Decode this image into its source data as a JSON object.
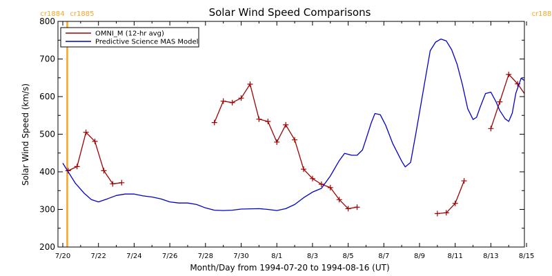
{
  "chart_data": {
    "type": "line",
    "title": "Solar Wind Speed Comparisons",
    "xlabel": "Month/Day from 1994-07-20 to 1994-08-16 (UT)",
    "ylabel": "Solar Wind Speed (km/s)",
    "x_unit_note": "x values are days after 1994-07-20 00:00 UT",
    "xlim": [
      0,
      28
    ],
    "ylim": [
      200,
      800
    ],
    "x_ticks": [
      {
        "value": 0,
        "label": "7/20"
      },
      {
        "value": 2,
        "label": "7/22"
      },
      {
        "value": 4,
        "label": "7/24"
      },
      {
        "value": 6,
        "label": "7/26"
      },
      {
        "value": 8,
        "label": "7/28"
      },
      {
        "value": 10,
        "label": "7/30"
      },
      {
        "value": 12,
        "label": "8/1"
      },
      {
        "value": 14,
        "label": "8/3"
      },
      {
        "value": 16,
        "label": "8/5"
      },
      {
        "value": 18,
        "label": "8/7"
      },
      {
        "value": 20,
        "label": "8/9"
      },
      {
        "value": 22,
        "label": "8/11"
      },
      {
        "value": 24,
        "label": "8/13"
      },
      {
        "value": 26,
        "label": "8/15"
      }
    ],
    "y_ticks": [
      200,
      300,
      400,
      500,
      600,
      700,
      800
    ],
    "legend_position": "top-left",
    "carrington_markers": [
      {
        "x": 0.25,
        "label_left": "cr1884",
        "label_right": "cr1885",
        "color": "#f5a623"
      },
      {
        "x": 27.8,
        "label_left": "cr1885",
        "label_right": "cr1886",
        "color": "#f5a623"
      }
    ],
    "series": [
      {
        "name": "OMNI_M (12-hr avg)",
        "color": "#a00000",
        "marker": "plus",
        "segments": [
          [
            [
              0.3,
              403
            ],
            [
              0.8,
              414
            ],
            [
              1.3,
              505
            ],
            [
              1.8,
              481
            ],
            [
              2.3,
              403
            ],
            [
              2.8,
              368
            ],
            [
              3.3,
              371
            ]
          ],
          [
            [
              8.5,
              531
            ],
            [
              9,
              588
            ],
            [
              9.5,
              584
            ],
            [
              10,
              596
            ],
            [
              10.5,
              633
            ],
            [
              11,
              540
            ],
            [
              11.5,
              534
            ],
            [
              12,
              479
            ],
            [
              12.5,
              525
            ],
            [
              13,
              485
            ],
            [
              13.5,
              407
            ],
            [
              14,
              382
            ],
            [
              14.5,
              367
            ],
            [
              15,
              358
            ],
            [
              15.5,
              326
            ],
            [
              16,
              302
            ],
            [
              16.5,
              306
            ]
          ],
          [
            [
              21,
              289
            ],
            [
              21.5,
              291
            ],
            [
              22,
              316
            ],
            [
              22.5,
              376
            ]
          ],
          [
            [
              24,
              515
            ],
            [
              24.5,
              586
            ],
            [
              25,
              659
            ],
            [
              25.5,
              634
            ],
            [
              26,
              600
            ],
            [
              26.5,
              545
            ],
            [
              27,
              527
            ],
            [
              27.5,
              527
            ],
            [
              28,
              498
            ]
          ]
        ]
      },
      {
        "name": "Predictive Science MAS Model",
        "color": "#0000cc",
        "marker": "none",
        "points": [
          [
            0,
            423
          ],
          [
            0.3,
            400
          ],
          [
            0.7,
            370
          ],
          [
            1.2,
            343
          ],
          [
            1.6,
            326
          ],
          [
            2,
            320
          ],
          [
            2.5,
            328
          ],
          [
            3,
            337
          ],
          [
            3.5,
            341
          ],
          [
            4,
            341
          ],
          [
            4.5,
            336
          ],
          [
            5,
            333
          ],
          [
            5.5,
            328
          ],
          [
            6,
            320
          ],
          [
            6.5,
            317
          ],
          [
            7,
            317
          ],
          [
            7.5,
            313
          ],
          [
            8,
            304
          ],
          [
            8.5,
            298
          ],
          [
            9,
            297
          ],
          [
            9.5,
            298
          ],
          [
            10,
            301
          ],
          [
            11,
            302
          ],
          [
            11.5,
            300
          ],
          [
            12,
            297
          ],
          [
            12.5,
            302
          ],
          [
            13,
            313
          ],
          [
            13.5,
            331
          ],
          [
            14,
            346
          ],
          [
            14.5,
            356
          ],
          [
            15,
            389
          ],
          [
            15.5,
            430
          ],
          [
            15.8,
            449
          ],
          [
            16.2,
            444
          ],
          [
            16.5,
            444
          ],
          [
            16.8,
            458
          ],
          [
            17,
            487
          ],
          [
            17.3,
            531
          ],
          [
            17.5,
            555
          ],
          [
            17.8,
            552
          ],
          [
            18.1,
            524
          ],
          [
            18.5,
            475
          ],
          [
            18.8,
            447
          ],
          [
            19,
            428
          ],
          [
            19.2,
            413
          ],
          [
            19.5,
            425
          ],
          [
            19.8,
            503
          ],
          [
            20,
            558
          ],
          [
            20.3,
            641
          ],
          [
            20.6,
            722
          ],
          [
            20.9,
            745
          ],
          [
            21.2,
            753
          ],
          [
            21.5,
            748
          ],
          [
            21.8,
            725
          ],
          [
            22.1,
            687
          ],
          [
            22.4,
            633
          ],
          [
            22.7,
            568
          ],
          [
            23,
            539
          ],
          [
            23.2,
            545
          ],
          [
            23.4,
            572
          ],
          [
            23.7,
            608
          ],
          [
            24,
            612
          ],
          [
            24.3,
            585
          ],
          [
            24.5,
            563
          ],
          [
            24.8,
            541
          ],
          [
            25,
            534
          ],
          [
            25.2,
            556
          ],
          [
            25.4,
            609
          ],
          [
            25.7,
            649
          ],
          [
            26,
            639
          ],
          [
            26.3,
            617
          ],
          [
            26.5,
            610
          ],
          [
            26.7,
            636
          ],
          [
            27,
            658
          ],
          [
            27.2,
            667
          ],
          [
            27.4,
            660
          ],
          [
            27.7,
            634
          ],
          [
            28,
            592
          ],
          [
            28.3,
            547
          ],
          [
            28.5,
            503
          ],
          [
            28.8,
            475
          ],
          [
            29,
            445
          ]
        ]
      }
    ]
  }
}
